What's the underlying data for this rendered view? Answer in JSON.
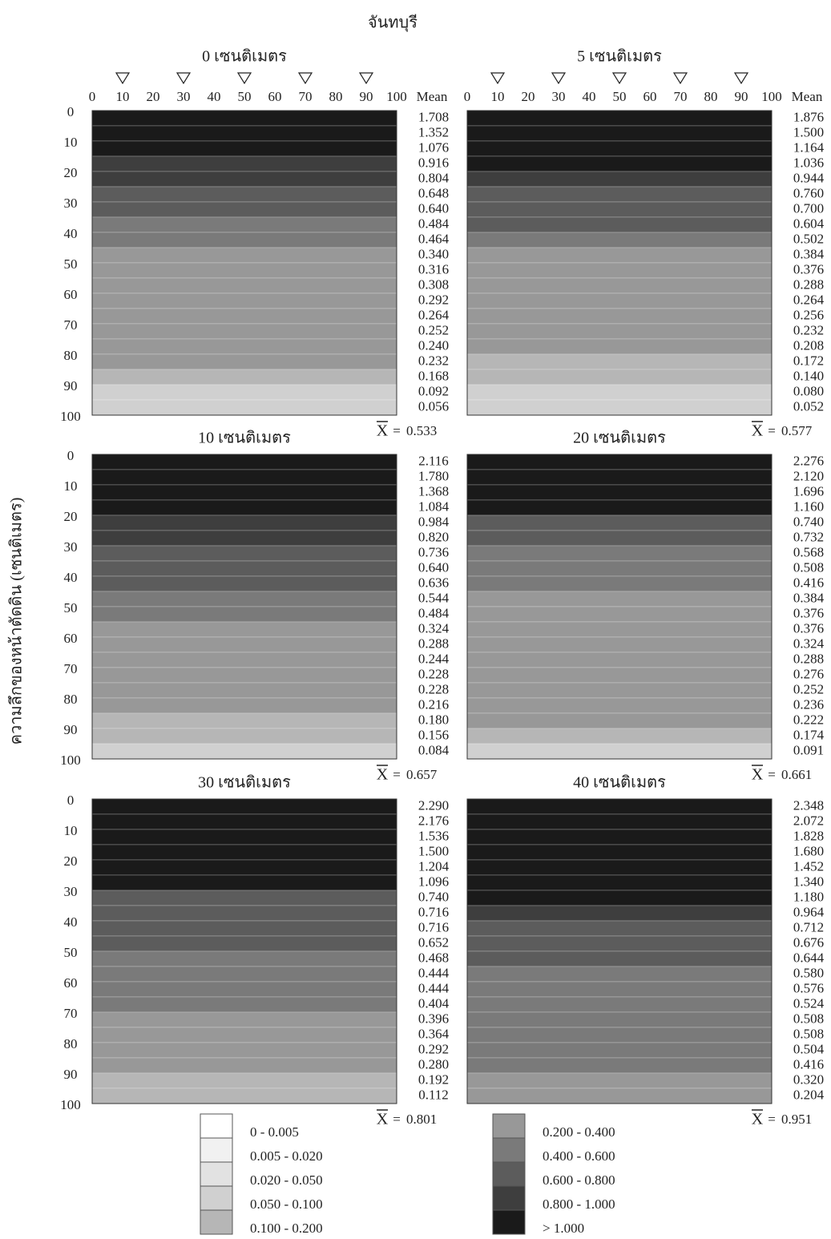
{
  "chart_data": {
    "type": "heatmap",
    "title": "จันทบุรี",
    "y_label": "ความลึกของหน้าตัดดิน (เซนติเมตร)",
    "column_header": "Mean",
    "xlim": [
      0,
      100
    ],
    "ylim": [
      0,
      100
    ],
    "xticks": [
      0,
      10,
      20,
      30,
      40,
      50,
      60,
      70,
      80,
      90,
      100
    ],
    "yticks": [
      0,
      10,
      20,
      30,
      40,
      50,
      60,
      70,
      80,
      90,
      100
    ],
    "sampling_points": [
      10,
      30,
      50,
      70,
      90
    ],
    "mean_symbol": "X",
    "equals": "=",
    "panels": [
      {
        "title": "0 เซนติเมตร",
        "overall_mean": 0.533,
        "values": [
          1.708,
          1.352,
          1.076,
          0.916,
          0.804,
          0.648,
          0.64,
          0.484,
          0.464,
          0.34,
          0.316,
          0.308,
          0.292,
          0.264,
          0.252,
          0.24,
          0.232,
          0.168,
          0.092,
          0.056
        ],
        "value_labels": [
          "1.708",
          "1.352",
          "1.076",
          "0.916",
          "0.804",
          "0.648",
          "0.640",
          "0.484",
          "0.464",
          "0.340",
          "0.316",
          "0.308",
          "0.292",
          "0.264",
          "0.252",
          "0.240",
          "0.232",
          "0.168",
          "0.092",
          "0.056"
        ]
      },
      {
        "title": "5 เซนติเมตร",
        "overall_mean": 0.577,
        "values": [
          1.876,
          1.5,
          1.164,
          1.036,
          0.944,
          0.76,
          0.7,
          0.604,
          0.502,
          0.384,
          0.376,
          0.288,
          0.264,
          0.256,
          0.232,
          0.208,
          0.172,
          0.14,
          0.08,
          0.052
        ],
        "value_labels": [
          "1.876",
          "1.500",
          "1.164",
          "1.036",
          "0.944",
          "0.760",
          "0.700",
          "0.604",
          "0.502",
          "0.384",
          "0.376",
          "0.288",
          "0.264",
          "0.256",
          "0.232",
          "0.208",
          "0.172",
          "0.140",
          "0.080",
          "0.052"
        ]
      },
      {
        "title": "10 เซนติเมตร",
        "overall_mean": 0.657,
        "values": [
          2.116,
          1.78,
          1.368,
          1.084,
          0.984,
          0.82,
          0.736,
          0.64,
          0.636,
          0.544,
          0.484,
          0.324,
          0.288,
          0.244,
          0.228,
          0.228,
          0.216,
          0.18,
          0.156,
          0.084
        ],
        "value_labels": [
          "2.116",
          "1.780",
          "1.368",
          "1.084",
          "0.984",
          "0.820",
          "0.736",
          "0.640",
          "0.636",
          "0.544",
          "0.484",
          "0.324",
          "0.288",
          "0.244",
          "0.228",
          "0.228",
          "0.216",
          "0.180",
          "0.156",
          "0.084"
        ]
      },
      {
        "title": "20 เซนติเมตร",
        "overall_mean": 0.661,
        "values": [
          2.276,
          2.12,
          1.696,
          1.16,
          0.74,
          0.732,
          0.568,
          0.508,
          0.416,
          0.384,
          0.376,
          0.376,
          0.324,
          0.288,
          0.276,
          0.252,
          0.236,
          0.222,
          0.174,
          0.091
        ],
        "value_labels": [
          "2.276",
          "2.120",
          "1.696",
          "1.160",
          "0.740",
          "0.732",
          "0.568",
          "0.508",
          "0.416",
          "0.384",
          "0.376",
          "0.376",
          "0.324",
          "0.288",
          "0.276",
          "0.252",
          "0.236",
          "0.222",
          "0.174",
          "0.091"
        ]
      },
      {
        "title": "30 เซนติเมตร",
        "overall_mean": 0.801,
        "values": [
          2.29,
          2.176,
          1.536,
          1.5,
          1.204,
          1.096,
          0.74,
          0.716,
          0.716,
          0.652,
          0.468,
          0.444,
          0.444,
          0.404,
          0.396,
          0.364,
          0.292,
          0.28,
          0.192,
          0.112
        ],
        "value_labels": [
          "2.290",
          "2.176",
          "1.536",
          "1.500",
          "1.204",
          "1.096",
          "0.740",
          "0.716",
          "0.716",
          "0.652",
          "0.468",
          "0.444",
          "0.444",
          "0.404",
          "0.396",
          "0.364",
          "0.292",
          "0.280",
          "0.192",
          "0.112"
        ]
      },
      {
        "title": "40 เซนติเมตร",
        "overall_mean": 0.951,
        "values": [
          2.348,
          2.072,
          1.828,
          1.68,
          1.452,
          1.34,
          1.18,
          0.964,
          0.712,
          0.676,
          0.644,
          0.58,
          0.576,
          0.524,
          0.508,
          0.508,
          0.504,
          0.416,
          0.32,
          0.204
        ],
        "value_labels": [
          "2.348",
          "2.072",
          "1.828",
          "1.680",
          "1.452",
          "1.340",
          "1.180",
          "0.964",
          "0.712",
          "0.676",
          "0.644",
          "0.580",
          "0.576",
          "0.524",
          "0.508",
          "0.508",
          "0.504",
          "0.416",
          "0.320",
          "0.204"
        ]
      }
    ],
    "legend": {
      "labels": [
        "0 - 0.005",
        "0.005 - 0.020",
        "0.020 - 0.050",
        "0.050 - 0.100",
        "0.100 - 0.200",
        "0.200 - 0.400",
        "0.400 - 0.600",
        "0.600 - 0.800",
        "0.800 - 1.000",
        "> 1.000"
      ],
      "breaks": [
        0.005,
        0.02,
        0.05,
        0.1,
        0.2,
        0.4,
        0.6,
        0.8,
        1.0
      ],
      "colors": [
        "#ffffff",
        "#f1f1f1",
        "#e2e2e2",
        "#d0d0d0",
        "#b6b6b6",
        "#989898",
        "#7a7a7a",
        "#5c5c5c",
        "#3e3e3e",
        "#1a1a1a"
      ]
    }
  }
}
